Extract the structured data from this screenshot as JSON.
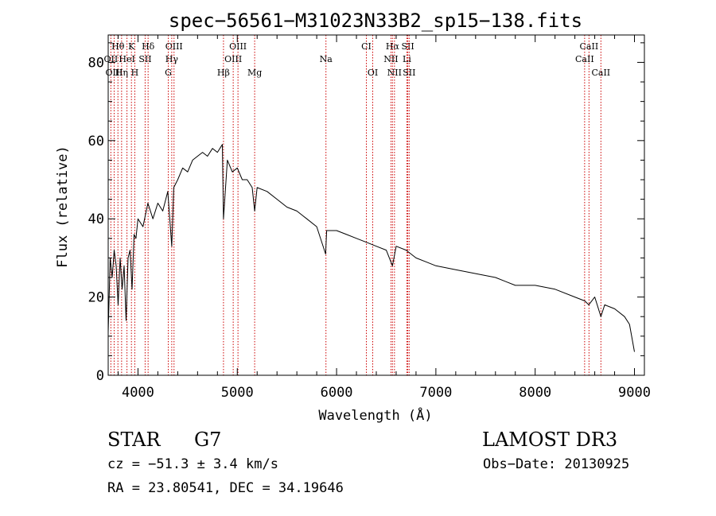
{
  "chart_data": {
    "type": "line",
    "title": "spec−56561−M31023N33B2_sp15−138.fits",
    "xlabel": "Wavelength (Å)",
    "ylabel": "Flux (relative)",
    "xlim": [
      3700,
      9100
    ],
    "ylim": [
      0,
      87
    ],
    "xticks": [
      4000,
      5000,
      6000,
      7000,
      8000,
      9000
    ],
    "xtick_labels": [
      "4000",
      "5000",
      "6000",
      "7000",
      "8000",
      "9000"
    ],
    "yticks": [
      0,
      20,
      40,
      60,
      80
    ],
    "ytick_labels": [
      "0",
      "20",
      "40",
      "60",
      "80"
    ],
    "series": [
      {
        "name": "flux",
        "x": [
          3700,
          3720,
          3740,
          3760,
          3780,
          3800,
          3820,
          3840,
          3860,
          3880,
          3900,
          3920,
          3940,
          3960,
          3980,
          4000,
          4050,
          4100,
          4150,
          4200,
          4250,
          4300,
          4340,
          4360,
          4400,
          4450,
          4500,
          4550,
          4600,
          4650,
          4700,
          4750,
          4800,
          4850,
          4861,
          4900,
          4950,
          5000,
          5050,
          5100,
          5150,
          5175,
          5200,
          5300,
          5400,
          5500,
          5600,
          5700,
          5800,
          5890,
          5900,
          6000,
          6100,
          6200,
          6300,
          6400,
          6500,
          6563,
          6600,
          6700,
          6800,
          6900,
          7000,
          7200,
          7400,
          7600,
          7800,
          8000,
          8200,
          8400,
          8500,
          8540,
          8600,
          8662,
          8700,
          8800,
          8900,
          8950,
          9000
        ],
        "values": [
          11,
          30,
          25,
          32,
          28,
          18,
          30,
          22,
          28,
          14,
          30,
          32,
          22,
          36,
          35,
          40,
          38,
          44,
          40,
          44,
          42,
          47,
          33,
          48,
          50,
          53,
          52,
          55,
          56,
          57,
          56,
          58,
          57,
          59,
          40,
          55,
          52,
          53,
          50,
          50,
          48,
          42,
          48,
          47,
          45,
          43,
          42,
          40,
          38,
          31,
          37,
          37,
          36,
          35,
          34,
          33,
          32,
          28,
          33,
          32,
          30,
          29,
          28,
          27,
          26,
          25,
          23,
          23,
          22,
          20,
          19,
          18,
          20,
          15,
          18,
          17,
          15,
          13,
          6
        ]
      }
    ],
    "line_markers": [
      {
        "label": "Hθ",
        "wavelength": 3798,
        "row": 0
      },
      {
        "label": "K",
        "wavelength": 3934,
        "row": 0
      },
      {
        "label": "Hδ",
        "wavelength": 4102,
        "row": 0
      },
      {
        "label": "OIII",
        "wavelength": 4363,
        "row": 0
      },
      {
        "label": "OIII",
        "wavelength": 5007,
        "row": 0
      },
      {
        "label": "CI",
        "wavelength": 6300,
        "row": 0
      },
      {
        "label": "Hα",
        "wavelength": 6563,
        "row": 0
      },
      {
        "label": "SII",
        "wavelength": 6717,
        "row": 0
      },
      {
        "label": "CaII",
        "wavelength": 8542,
        "row": 0
      },
      {
        "label": "OII",
        "wavelength": 3727,
        "row": 1
      },
      {
        "label": "HeI",
        "wavelength": 3889,
        "row": 1
      },
      {
        "label": "SII",
        "wavelength": 4072,
        "row": 1
      },
      {
        "label": "Hγ",
        "wavelength": 4340,
        "row": 1
      },
      {
        "label": "OIII",
        "wavelength": 4959,
        "row": 1
      },
      {
        "label": "Na",
        "wavelength": 5893,
        "row": 1
      },
      {
        "label": "NII",
        "wavelength": 6548,
        "row": 1
      },
      {
        "label": "Li",
        "wavelength": 6708,
        "row": 1
      },
      {
        "label": "CaII",
        "wavelength": 8498,
        "row": 1
      },
      {
        "label": "OIII",
        "wavelength": 3760,
        "row": 2
      },
      {
        "label": "Hη",
        "wavelength": 3835,
        "row": 2
      },
      {
        "label": "H",
        "wavelength": 3968,
        "row": 2
      },
      {
        "label": "G",
        "wavelength": 4305,
        "row": 2
      },
      {
        "label": "Hβ",
        "wavelength": 4861,
        "row": 2
      },
      {
        "label": "Mg",
        "wavelength": 5175,
        "row": 2
      },
      {
        "label": "OI",
        "wavelength": 6364,
        "row": 2
      },
      {
        "label": "NII",
        "wavelength": 6583,
        "row": 2
      },
      {
        "label": "SII",
        "wavelength": 6731,
        "row": 2
      },
      {
        "label": "CaII",
        "wavelength": 8662,
        "row": 2
      }
    ]
  },
  "info": {
    "object_class": "STAR",
    "subclass": "G7",
    "survey": "LAMOST DR3",
    "cz": "cz = −51.3 ± 3.4 km/s",
    "obs_date": "Obs−Date: 20130925",
    "coords": "RA =  23.80541, DEC =  34.19646"
  },
  "colors": {
    "spectrum": "#000000",
    "marker_line": "#cc0000",
    "axis": "#000000",
    "background": "#ffffff"
  }
}
